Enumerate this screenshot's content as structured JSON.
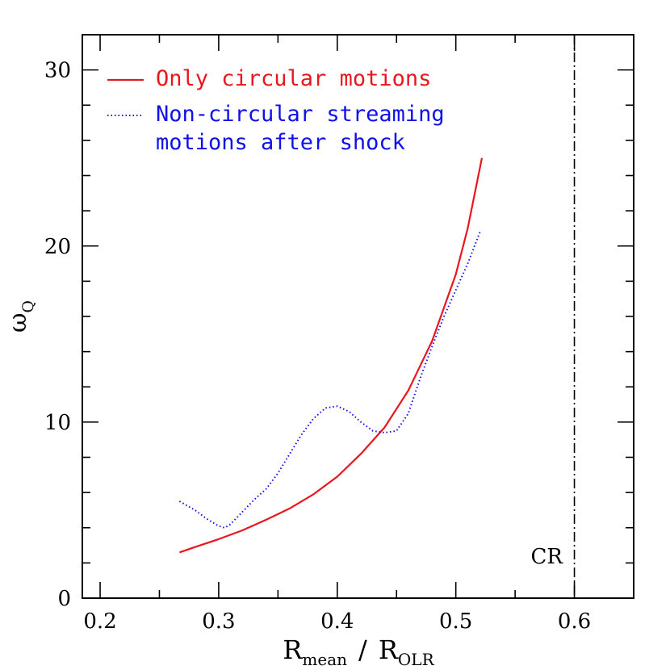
{
  "chart_data": {
    "type": "line",
    "xlabel": {
      "main": "R",
      "sub": "mean",
      "sep": "/",
      "main2": "R",
      "sub2": "OLR"
    },
    "ylabel": {
      "main": "ω",
      "sub": "Q"
    },
    "xlim": [
      0.185,
      0.65
    ],
    "ylim": [
      0,
      32
    ],
    "x_ticks": [
      "0.2",
      "0.3",
      "0.4",
      "0.5",
      "0.6"
    ],
    "y_ticks": [
      "0",
      "10",
      "20",
      "30"
    ],
    "series": [
      {
        "name": "Only circular motions",
        "color": "#e8161d",
        "style": "solid",
        "x": [
          0.267,
          0.28,
          0.3,
          0.32,
          0.34,
          0.36,
          0.38,
          0.4,
          0.42,
          0.44,
          0.46,
          0.48,
          0.5,
          0.51,
          0.522
        ],
        "y": [
          2.6,
          2.9,
          3.35,
          3.85,
          4.45,
          5.1,
          5.9,
          6.9,
          8.2,
          9.7,
          11.8,
          14.6,
          18.4,
          21.0,
          25.0
        ]
      },
      {
        "name": "Non-circular streaming motions after shock",
        "name_lines": [
          "Non-circular streaming",
          "motions after shock"
        ],
        "color": "#1010e8",
        "style": "dotted",
        "x": [
          0.267,
          0.28,
          0.29,
          0.3,
          0.305,
          0.31,
          0.32,
          0.33,
          0.34,
          0.35,
          0.36,
          0.37,
          0.38,
          0.39,
          0.4,
          0.41,
          0.42,
          0.43,
          0.44,
          0.45,
          0.46,
          0.47,
          0.48,
          0.49,
          0.5,
          0.51,
          0.521
        ],
        "y": [
          5.5,
          5.0,
          4.5,
          4.1,
          4.0,
          4.2,
          4.9,
          5.6,
          6.2,
          7.1,
          8.2,
          9.3,
          10.2,
          10.8,
          10.9,
          10.6,
          10.0,
          9.5,
          9.4,
          9.5,
          10.5,
          12.5,
          14.3,
          16.0,
          17.5,
          19.0,
          20.9
        ]
      }
    ],
    "vertical_line": {
      "x": 0.6,
      "style": "dash-dot",
      "color": "#000000",
      "label": "CR"
    },
    "legend_position": "top-left",
    "grid": false
  }
}
